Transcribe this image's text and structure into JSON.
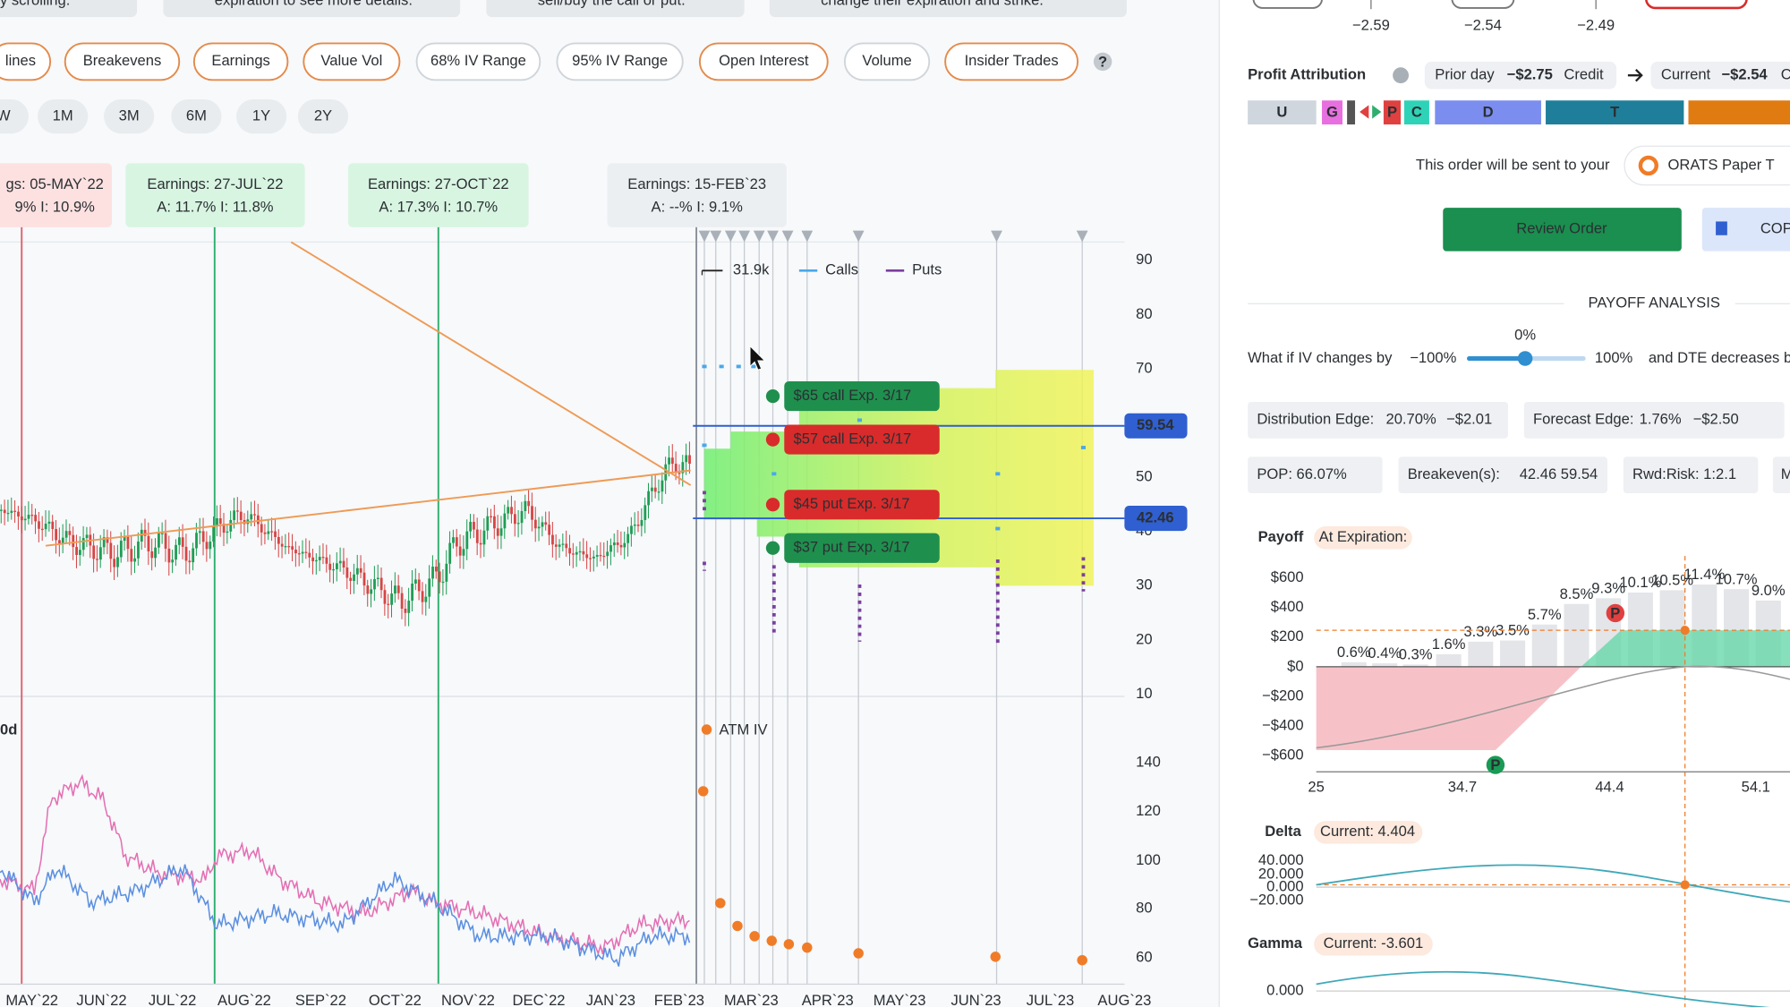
{
  "hints": [
    "y scrolling.",
    "expiration to see more details.",
    "sell/buy the call or put.",
    "change their expiration and strike."
  ],
  "toggles": [
    "lines",
    "Breakevens",
    "Earnings",
    "Value Vol",
    "68% IV Range",
    "95% IV Range",
    "Open Interest",
    "Volume",
    "Insider Trades",
    "?"
  ],
  "ranges": [
    "W",
    "1M",
    "3M",
    "6M",
    "1Y",
    "2Y"
  ],
  "earnings": [
    {
      "title": "gs: 05-MAY`22",
      "detail": "9%     I: 10.9%"
    },
    {
      "title": "Earnings: 27-JUL`22",
      "detail": "A: 11.7%     I: 11.8%"
    },
    {
      "title": "Earnings: 27-OCT`22",
      "detail": "A: 17.3%     I: 10.7%"
    },
    {
      "title": "Earnings: 15-FEB`23",
      "detail": "A: --%     I: 9.1%"
    }
  ],
  "legend": {
    "volume": "31.9k",
    "calls": "Calls",
    "puts": "Puts"
  },
  "legs": [
    "$65 call Exp. 3/17",
    "$57 call Exp. 3/17",
    "$45 put Exp. 3/17",
    "$37 put Exp. 3/17"
  ],
  "price_axis": [
    90,
    80,
    70,
    60,
    50,
    40,
    30,
    20,
    10
  ],
  "price_tags": [
    59.54,
    42.46
  ],
  "iv_panel": {
    "window": "0d",
    "label": "ATM IV",
    "axis": [
      140,
      120,
      100,
      80,
      60
    ]
  },
  "months": [
    "MAY`22",
    "JUN`22",
    "JUL`22",
    "AUG`22",
    "SEP`22",
    "OCT`22",
    "NOV`22",
    "DEC`22",
    "JAN`23",
    "FEB`23",
    "MAR`23",
    "APR`23",
    "MAY`23",
    "JUN`23",
    "JUL`23",
    "AUG`23"
  ],
  "top_values": [
    "−2.59",
    "−2.54",
    "−2.49"
  ],
  "attribution": {
    "title": "Profit Attribution",
    "prior_label": "Prior day",
    "prior_value": "−$2.75",
    "prior_kind": "Credit",
    "current_label": "Current",
    "current_value": "−$2.54",
    "current_kind": "C",
    "segments": [
      "U",
      "G",
      "P",
      "C",
      "D",
      "T"
    ]
  },
  "order": {
    "notice": "This order will be sent to your",
    "account": "ORATS Paper T",
    "review": "Review Order",
    "copy": "COP"
  },
  "payoff_analysis": {
    "heading": "PAYOFF ANALYSIS",
    "iv_prefix": "What if IV changes by",
    "iv_min": "−100%",
    "iv_value": "0%",
    "iv_max": "100%",
    "dte": "and DTE decreases b",
    "distribution_label": "Distribution Edge:",
    "distribution_pct": "20.70%",
    "distribution_value": "−$2.01",
    "forecast_label": "Forecast Edge:",
    "forecast_pct": "1.76%",
    "forecast_value": "−$2.50",
    "pop": "POP: 66.07%",
    "breakeven_label": "Breakeven(s):",
    "breakevens": "42.46  59.54",
    "reward_risk": "Rwd:Risk: 1:2.1",
    "more": "M"
  },
  "payoff": {
    "title": "Payoff",
    "mode": "At Expiration:",
    "y_axis": [
      "$600",
      "$400",
      "$200",
      "$0",
      "−$200",
      "−$400",
      "−$600"
    ],
    "x_axis": [
      25,
      34.7,
      44.4,
      54.1
    ],
    "probabilities": [
      "0.6%",
      "0.4%",
      "0.3%",
      "1.6%",
      "3.3%",
      "3.5%",
      "5.7%",
      "8.5%",
      "9.3%",
      "10.1%",
      "10.5%",
      "11.4%",
      "10.7%",
      "9.0%"
    ],
    "markers": [
      "P",
      "P"
    ]
  },
  "delta": {
    "title": "Delta",
    "current": "Current: 4.404",
    "y_axis": [
      "40.000",
      "20.000",
      "0.000",
      "−20.000"
    ]
  },
  "gamma": {
    "title": "Gamma",
    "current": "Current: -3.601",
    "y_axis": [
      "0.000"
    ]
  }
}
